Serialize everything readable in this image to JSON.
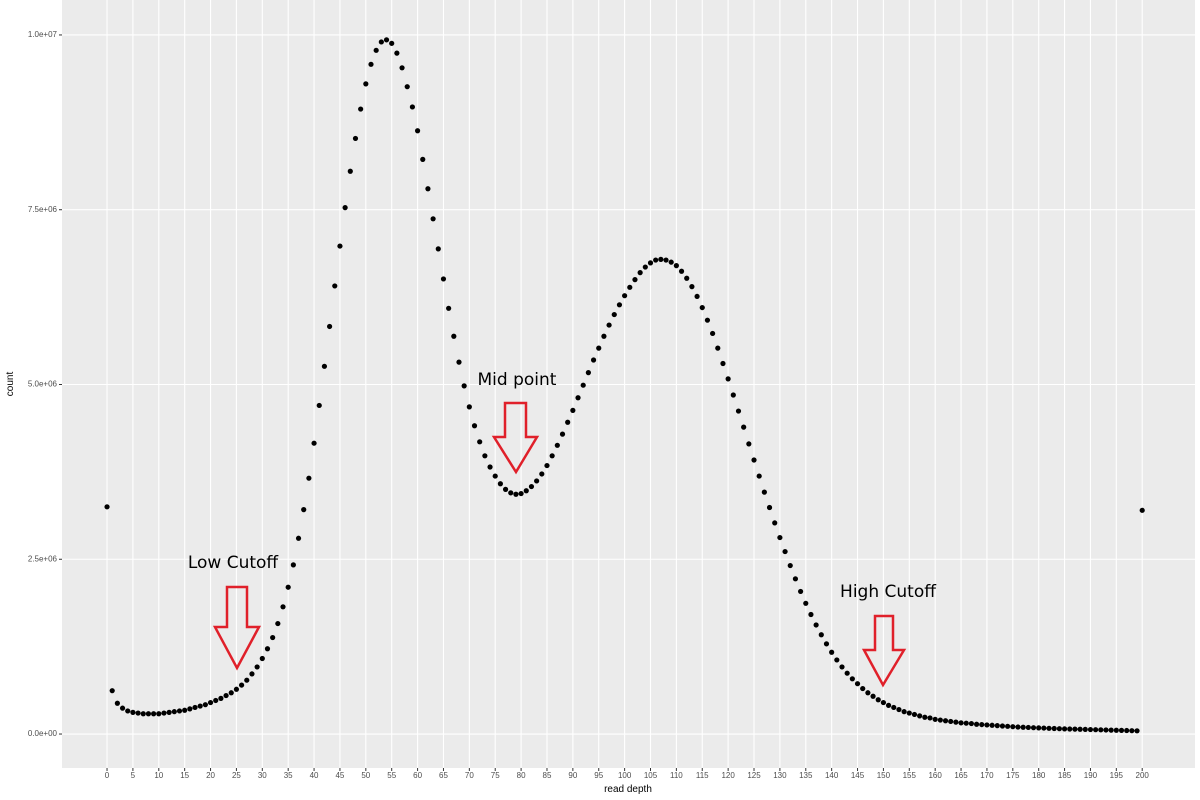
{
  "chart_data": {
    "type": "scatter",
    "xlabel": "read depth",
    "ylabel": "count",
    "annotations": [
      "Low Cutoff",
      "Mid point",
      "High Cutoff"
    ],
    "color": "#000000",
    "grid": true,
    "xlim": [
      -8.7,
      210.2
    ],
    "ylim": [
      -486000,
      10500000
    ],
    "xticks": [
      0,
      5,
      10,
      15,
      20,
      25,
      30,
      35,
      40,
      45,
      50,
      55,
      60,
      65,
      70,
      75,
      80,
      85,
      90,
      95,
      100,
      105,
      110,
      115,
      120,
      125,
      130,
      135,
      140,
      145,
      150,
      155,
      160,
      165,
      170,
      175,
      180,
      185,
      190,
      195,
      200
    ],
    "yticks": [
      {
        "value": 0,
        "label": "0.0e+00"
      },
      {
        "value": 2500000,
        "label": "2.5e+06"
      },
      {
        "value": 5000000,
        "label": "5.0e+06"
      },
      {
        "value": 7500000,
        "label": "7.5e+06"
      },
      {
        "value": 10000000,
        "label": "1.0e+07"
      }
    ],
    "x": [
      0,
      1,
      2,
      3,
      4,
      5,
      6,
      7,
      8,
      9,
      10,
      11,
      12,
      13,
      14,
      15,
      16,
      17,
      18,
      19,
      20,
      21,
      22,
      23,
      24,
      25,
      26,
      27,
      28,
      29,
      30,
      31,
      32,
      33,
      34,
      35,
      36,
      37,
      38,
      39,
      40,
      41,
      42,
      43,
      44,
      45,
      46,
      47,
      48,
      49,
      50,
      51,
      52,
      53,
      54,
      55,
      56,
      57,
      58,
      59,
      60,
      61,
      62,
      63,
      64,
      65,
      66,
      67,
      68,
      69,
      70,
      71,
      72,
      73,
      74,
      75,
      76,
      77,
      78,
      79,
      80,
      81,
      82,
      83,
      84,
      85,
      86,
      87,
      88,
      89,
      90,
      91,
      92,
      93,
      94,
      95,
      96,
      97,
      98,
      99,
      100,
      101,
      102,
      103,
      104,
      105,
      106,
      107,
      108,
      109,
      110,
      111,
      112,
      113,
      114,
      115,
      116,
      117,
      118,
      119,
      120,
      121,
      122,
      123,
      124,
      125,
      126,
      127,
      128,
      129,
      130,
      131,
      132,
      133,
      134,
      135,
      136,
      137,
      138,
      139,
      140,
      141,
      142,
      143,
      144,
      145,
      146,
      147,
      148,
      149,
      150,
      151,
      152,
      153,
      154,
      155,
      156,
      157,
      158,
      159,
      160,
      161,
      162,
      163,
      164,
      165,
      166,
      167,
      168,
      169,
      170,
      171,
      172,
      173,
      174,
      175,
      176,
      177,
      178,
      179,
      180,
      181,
      182,
      183,
      184,
      185,
      186,
      187,
      188,
      189,
      190,
      191,
      192,
      193,
      194,
      195,
      196,
      197,
      198,
      199,
      200
    ],
    "values": [
      3250000,
      620000,
      440000,
      370000,
      330000,
      310000,
      300000,
      290000,
      290000,
      290000,
      290000,
      300000,
      310000,
      320000,
      330000,
      340000,
      360000,
      380000,
      400000,
      420000,
      450000,
      480000,
      510000,
      550000,
      590000,
      640000,
      700000,
      770000,
      860000,
      960000,
      1080000,
      1220000,
      1380000,
      1580000,
      1820000,
      2100000,
      2420000,
      2800000,
      3210000,
      3660000,
      4160000,
      4700000,
      5260000,
      5830000,
      6410000,
      6980000,
      7530000,
      8050000,
      8520000,
      8940000,
      9300000,
      9580000,
      9780000,
      9900000,
      9930000,
      9880000,
      9740000,
      9530000,
      9260000,
      8970000,
      8630000,
      8220000,
      7800000,
      7370000,
      6940000,
      6510000,
      6090000,
      5690000,
      5320000,
      4980000,
      4680000,
      4410000,
      4180000,
      3980000,
      3820000,
      3690000,
      3580000,
      3500000,
      3450000,
      3430000,
      3440000,
      3480000,
      3540000,
      3620000,
      3720000,
      3840000,
      3980000,
      4130000,
      4290000,
      4460000,
      4630000,
      4810000,
      4990000,
      5170000,
      5350000,
      5520000,
      5690000,
      5850000,
      6000000,
      6140000,
      6270000,
      6390000,
      6500000,
      6600000,
      6680000,
      6740000,
      6780000,
      6790000,
      6780000,
      6750000,
      6700000,
      6620000,
      6520000,
      6400000,
      6260000,
      6100000,
      5920000,
      5730000,
      5520000,
      5300000,
      5080000,
      4850000,
      4620000,
      4390000,
      4150000,
      3920000,
      3690000,
      3460000,
      3240000,
      3020000,
      2810000,
      2610000,
      2410000,
      2220000,
      2040000,
      1870000,
      1710000,
      1560000,
      1420000,
      1290000,
      1170000,
      1060000,
      960000,
      870000,
      790000,
      720000,
      650000,
      590000,
      540000,
      490000,
      450000,
      410000,
      380000,
      350000,
      320000,
      300000,
      280000,
      260000,
      240000,
      230000,
      210000,
      200000,
      190000,
      180000,
      170000,
      160000,
      155000,
      150000,
      140000,
      135000,
      130000,
      125000,
      120000,
      115000,
      110000,
      105000,
      100000,
      97000,
      94000,
      91000,
      88000,
      85000,
      82000,
      79000,
      76000,
      74000,
      72000,
      70000,
      68000,
      66000,
      64000,
      62000,
      60000,
      58000,
      56000,
      54000,
      52000,
      50000,
      48000,
      46000,
      3200000
    ]
  }
}
